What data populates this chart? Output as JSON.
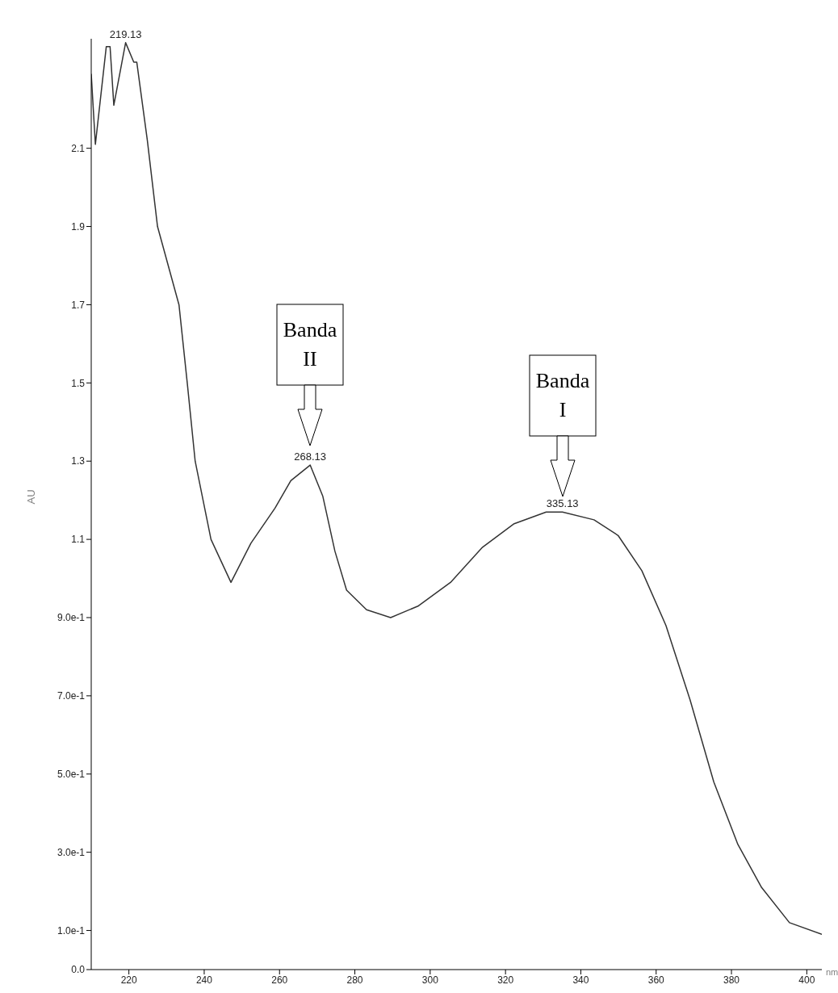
{
  "chart_data": {
    "type": "line",
    "xlabel": "nm",
    "ylabel": "AU",
    "xlim": [
      210,
      404
    ],
    "xticks": [
      220,
      240,
      260,
      280,
      300,
      320,
      340,
      360,
      380,
      400
    ],
    "ylim": [
      0,
      2.38
    ],
    "yticks": [
      {
        "value": 0,
        "label": "0.0"
      },
      {
        "value": 0.1,
        "label": "1.0e-1"
      },
      {
        "value": 0.3,
        "label": "3.0e-1"
      },
      {
        "value": 0.5,
        "label": "5.0e-1"
      },
      {
        "value": 0.7,
        "label": "7.0e-1"
      },
      {
        "value": 0.9,
        "label": "9.0e-1"
      },
      {
        "value": 1.1,
        "label": "1.1"
      },
      {
        "value": 1.3,
        "label": "1.3"
      },
      {
        "value": 1.5,
        "label": "1.5"
      },
      {
        "value": 1.7,
        "label": "1.7"
      },
      {
        "value": 1.9,
        "label": "1.9"
      },
      {
        "value": 2.1,
        "label": "2.1"
      }
    ],
    "grid": false,
    "legend": false,
    "marker": "none",
    "line_style": "solid",
    "series": [
      {
        "color": "#333333",
        "x": [
          210,
          211.1,
          214,
          215,
          216,
          219.13,
          221.3,
          222.1,
          224.9,
          227.6,
          233.3,
          235.5,
          237.6,
          241.8,
          247.1,
          252.4,
          258.8,
          263,
          268.13,
          271.5,
          274.7,
          277.8,
          283.1,
          289.5,
          296.9,
          305.4,
          313.9,
          322.3,
          330.8,
          335.13,
          343.5,
          349.9,
          356.2,
          362.6,
          369,
          375.3,
          381.7,
          388,
          395.4,
          404
        ],
        "values": [
          2.29,
          2.11,
          2.36,
          2.36,
          2.21,
          2.37,
          2.32,
          2.32,
          2.12,
          1.9,
          1.7,
          1.5,
          1.3,
          1.1,
          0.99,
          1.09,
          1.18,
          1.25,
          1.29,
          1.21,
          1.07,
          0.97,
          0.92,
          0.9,
          0.93,
          0.99,
          1.08,
          1.14,
          1.17,
          1.17,
          1.15,
          1.11,
          1.02,
          0.88,
          0.69,
          0.48,
          0.32,
          0.21,
          0.12,
          0.09
        ]
      }
    ],
    "annotations": [
      {
        "text": "219.13",
        "x": 219.13,
        "y": 2.37
      },
      {
        "text": "268.13",
        "x": 268.13,
        "y": 1.29
      },
      {
        "text": "335.13",
        "x": 335.13,
        "y": 1.17
      },
      "Banda II",
      "Banda I"
    ]
  }
}
